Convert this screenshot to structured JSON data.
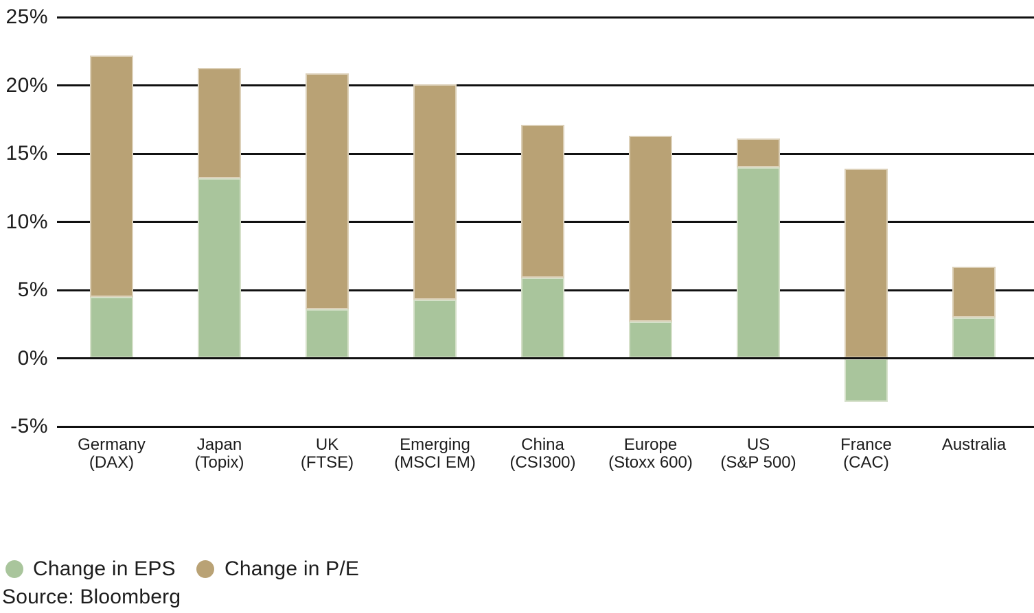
{
  "chart_data": {
    "type": "bar",
    "stacked": true,
    "title": "",
    "categories": [
      {
        "line1": "Germany",
        "line2": "(DAX)"
      },
      {
        "line1": "Japan",
        "line2": "(Topix)"
      },
      {
        "line1": "UK",
        "line2": "(FTSE)"
      },
      {
        "line1": "Emerging",
        "line2": "(MSCI EM)"
      },
      {
        "line1": "China",
        "line2": "(CSI300)"
      },
      {
        "line1": "Europe",
        "line2": "(Stoxx 600)"
      },
      {
        "line1": "US",
        "line2": "(S&P 500)"
      },
      {
        "line1": "France",
        "line2": "(CAC)"
      },
      {
        "line1": "Australia",
        "line2": ""
      }
    ],
    "series": [
      {
        "name": "Change in EPS",
        "color": "#a9c59c",
        "values": [
          4.5,
          13.2,
          3.6,
          4.3,
          5.9,
          2.7,
          14.0,
          -3.2,
          3.0
        ]
      },
      {
        "name": "Change in P/E",
        "color": "#b9a275",
        "values": [
          17.7,
          8.1,
          17.3,
          15.8,
          11.2,
          13.6,
          2.1,
          13.9,
          3.7
        ]
      }
    ],
    "y_axis": {
      "min": -5,
      "max": 25,
      "tick_step": 5,
      "tick_values": [
        25,
        20,
        15,
        10,
        5,
        0,
        -5
      ],
      "tick_suffix": "%"
    },
    "x_axis": {
      "label": ""
    },
    "grid": "horizontal",
    "legend_position": "bottom-left"
  },
  "source_note": "Source: Bloomberg",
  "colors": {
    "background": "#ffffff",
    "gridline": "#111111",
    "text": "#1d1d1d",
    "eps_green": "#a9c59c",
    "pe_tan": "#b9a275"
  }
}
